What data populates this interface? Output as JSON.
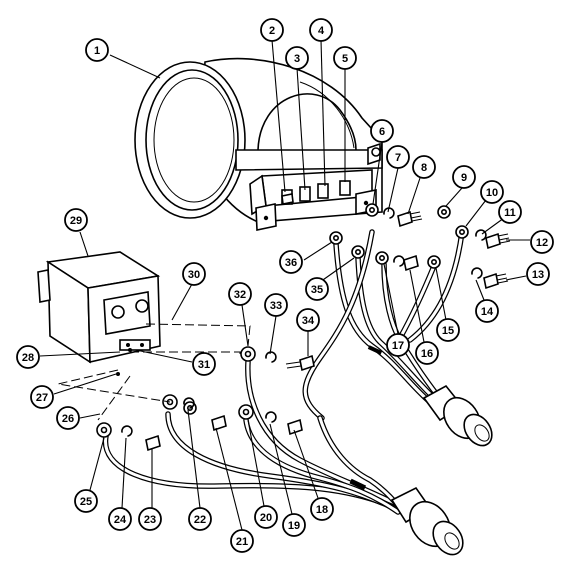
{
  "callouts": [
    {
      "id": "1",
      "label": "1"
    },
    {
      "id": "2",
      "label": "2"
    },
    {
      "id": "3",
      "label": "3"
    },
    {
      "id": "4",
      "label": "4"
    },
    {
      "id": "5",
      "label": "5"
    },
    {
      "id": "6",
      "label": "6"
    },
    {
      "id": "7",
      "label": "7"
    },
    {
      "id": "8",
      "label": "8"
    },
    {
      "id": "9",
      "label": "9"
    },
    {
      "id": "10",
      "label": "10"
    },
    {
      "id": "11",
      "label": "11"
    },
    {
      "id": "12",
      "label": "12"
    },
    {
      "id": "13",
      "label": "13"
    },
    {
      "id": "14",
      "label": "14"
    },
    {
      "id": "15",
      "label": "15"
    },
    {
      "id": "16",
      "label": "16"
    },
    {
      "id": "17",
      "label": "17"
    },
    {
      "id": "18",
      "label": "18"
    },
    {
      "id": "19",
      "label": "19"
    },
    {
      "id": "20",
      "label": "20"
    },
    {
      "id": "21",
      "label": "21"
    },
    {
      "id": "22",
      "label": "22"
    },
    {
      "id": "23",
      "label": "23"
    },
    {
      "id": "24",
      "label": "24"
    },
    {
      "id": "25",
      "label": "25"
    },
    {
      "id": "26",
      "label": "26"
    },
    {
      "id": "27",
      "label": "27"
    },
    {
      "id": "28",
      "label": "28"
    },
    {
      "id": "29",
      "label": "29"
    },
    {
      "id": "30",
      "label": "30"
    },
    {
      "id": "31",
      "label": "31"
    },
    {
      "id": "32",
      "label": "32"
    },
    {
      "id": "33",
      "label": "33"
    },
    {
      "id": "34",
      "label": "34"
    },
    {
      "id": "35",
      "label": "35"
    },
    {
      "id": "36",
      "label": "36"
    }
  ]
}
